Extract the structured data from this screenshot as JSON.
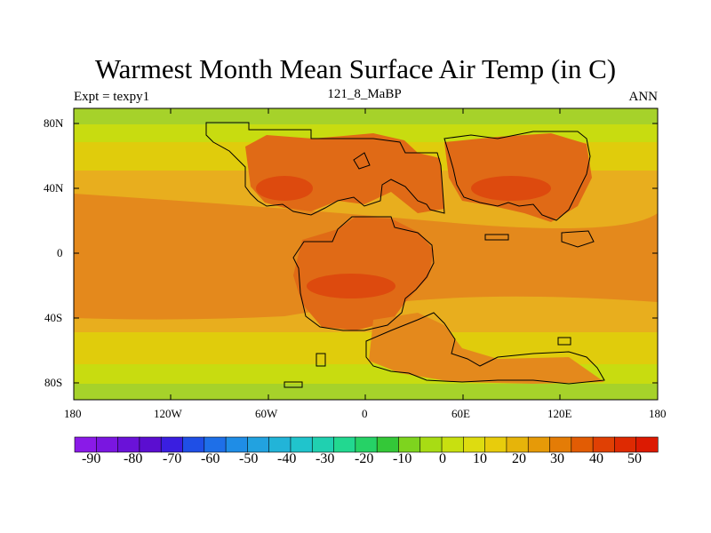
{
  "title": "Warmest Month Mean Surface Air Temp (in C)",
  "subtitle_left": "Expt = texpy1",
  "subtitle_center": "121_8_MaBP",
  "subtitle_right": "ANN",
  "y_ticks": [
    "80N",
    "40N",
    "0",
    "40S",
    "80S"
  ],
  "x_ticks": [
    "180",
    "120W",
    "60W",
    "0",
    "60E",
    "120E",
    "180"
  ],
  "colorbar": {
    "labels": [
      "-90",
      "-80",
      "-70",
      "-60",
      "-50",
      "-40",
      "-30",
      "-20",
      "-10",
      "0",
      "10",
      "20",
      "30",
      "40",
      "50"
    ],
    "colors": [
      "#8a1ae8",
      "#7a16e0",
      "#6a12d8",
      "#5b0ed0",
      "#3a1ee0",
      "#1f4fe6",
      "#1e6fe8",
      "#1f8de6",
      "#22a2e0",
      "#22b4d8",
      "#20c4cc",
      "#20d0b0",
      "#22d890",
      "#26d266",
      "#34c838",
      "#7ed41e",
      "#a8dc14",
      "#c8e010",
      "#dedc10",
      "#e8cc0c",
      "#e6b40a",
      "#e69a08",
      "#e47c06",
      "#e25c04",
      "#e04004",
      "#de2a02",
      "#dc1a02"
    ]
  },
  "chart_data": {
    "type": "heatmap",
    "title": "Warmest Month Mean Surface Air Temp (in C)",
    "subtitle": "121_8_MaBP",
    "experiment": "Expt = texpy1",
    "season": "ANN",
    "x_range": [
      -180,
      180
    ],
    "y_range": [
      -90,
      90
    ],
    "levels": [
      -90,
      -80,
      -70,
      -60,
      -50,
      -40,
      -30,
      -20,
      -10,
      0,
      10,
      20,
      30,
      40,
      50
    ],
    "colors": {
      "cold_polar": "#a6d22a",
      "cool": "#c8dc10",
      "mild": "#e0cc0c",
      "warm_ocean": "#e8ae1e",
      "hot": "#e4891c",
      "very_hot": "#e06a16",
      "land_max": "#dd4a0e"
    }
  }
}
